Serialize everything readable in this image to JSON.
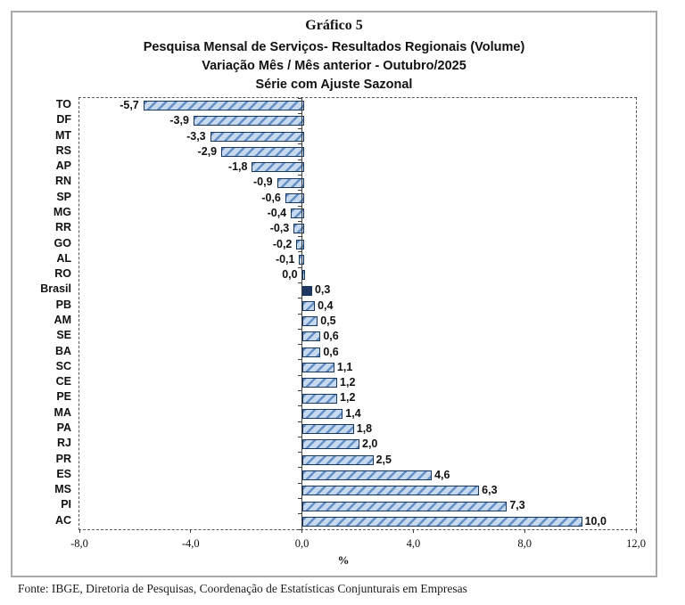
{
  "footer": {
    "source": "Fonte: IBGE, Diretoria de Pesquisas, Coordenação de Estatísticas Conjunturais em Empresas"
  },
  "chart_data": {
    "type": "bar",
    "orientation": "horizontal",
    "title": "Gráfico 5",
    "subtitle_lines": [
      "Pesquisa Mensal de Serviços- Resultados Regionais (Volume)",
      "Variação Mês / Mês anterior - Outubro/2025",
      "Série com Ajuste Sazonal"
    ],
    "categories": [
      "TO",
      "DF",
      "MT",
      "RS",
      "AP",
      "RN",
      "SP",
      "MG",
      "RR",
      "GO",
      "AL",
      "RO",
      "Brasil",
      "PB",
      "AM",
      "SE",
      "BA",
      "SC",
      "CE",
      "PE",
      "MA",
      "PA",
      "RJ",
      "PR",
      "ES",
      "MS",
      "PI",
      "AC"
    ],
    "values": [
      -5.7,
      -3.9,
      -3.3,
      -2.9,
      -1.8,
      -0.9,
      -0.6,
      -0.4,
      -0.3,
      -0.2,
      -0.1,
      0.0,
      0.3,
      0.4,
      0.5,
      0.6,
      0.6,
      1.1,
      1.2,
      1.2,
      1.4,
      1.8,
      2.0,
      2.5,
      4.6,
      6.3,
      7.3,
      10.0
    ],
    "value_labels": [
      "-5,7",
      "-3,9",
      "-3,3",
      "-2,9",
      "-1,8",
      "-0,9",
      "-0,6",
      "-0,4",
      "-0,3",
      "-0,2",
      "-0,1",
      "0,0",
      "0,3",
      "0,4",
      "0,5",
      "0,6",
      "0,6",
      "1,1",
      "1,2",
      "1,2",
      "1,4",
      "1,8",
      "2,0",
      "2,5",
      "4,6",
      "6,3",
      "7,3",
      "10,0"
    ],
    "highlight_category": "Brasil",
    "xlabel": "%",
    "xlim": [
      -8,
      12
    ],
    "x_ticks": [
      -8,
      -4,
      0,
      4,
      8,
      12
    ],
    "x_tick_labels": [
      "-8,0",
      "-4,0",
      "0,0",
      "4,0",
      "8,0",
      "12,0"
    ],
    "grid": false,
    "legend_position": "none",
    "colors": {
      "bar_fill": "#c7d9ef",
      "bar_stripe": "#6490c5",
      "bar_border": "#17375e",
      "highlight_fill": "#1f3864",
      "text": "#111111",
      "frame_border": "#a9a9a9"
    }
  }
}
